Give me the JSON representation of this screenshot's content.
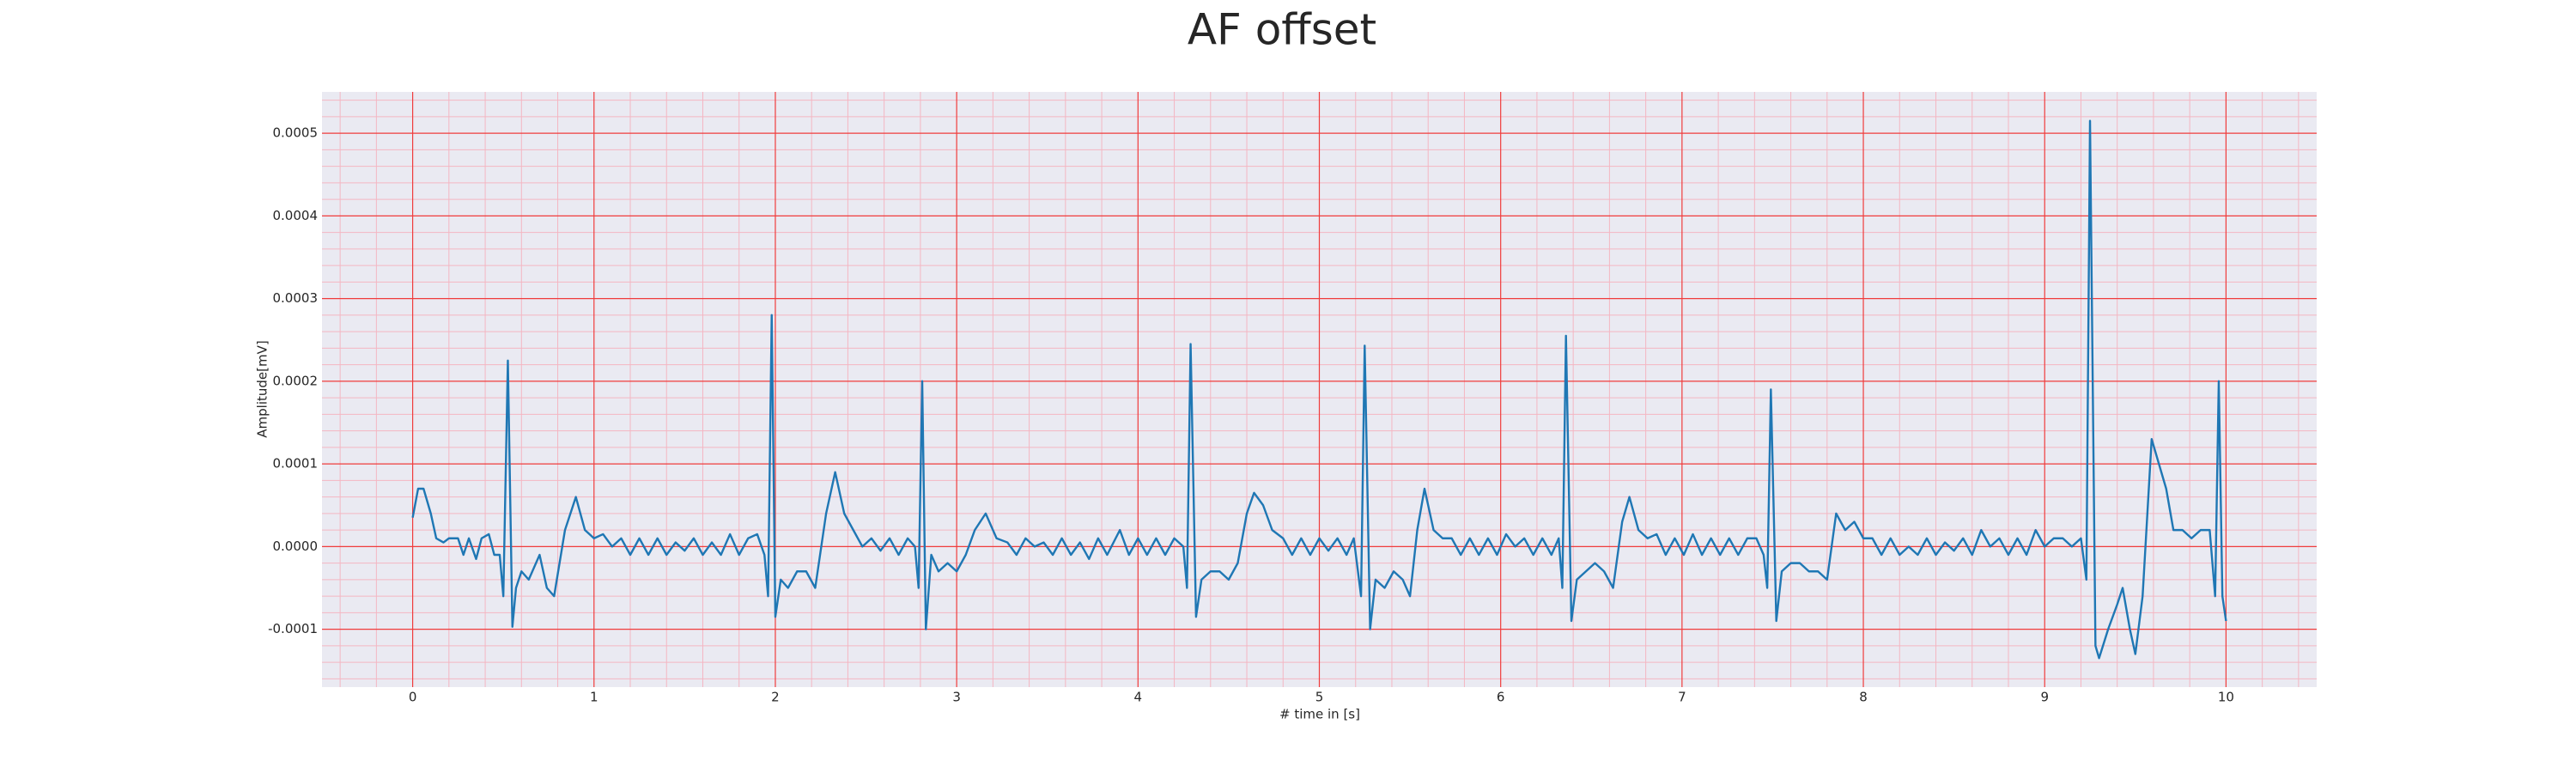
{
  "chart_data": {
    "type": "line",
    "title": "AF offset",
    "xlabel": "# time in [s]",
    "ylabel": "Amplitude[mV]",
    "xlim": [
      -0.5,
      10.5
    ],
    "xticks": [
      0,
      1,
      2,
      3,
      4,
      5,
      6,
      7,
      8,
      9,
      10
    ],
    "ylim": [
      -0.00017,
      0.00055
    ],
    "yticks": [
      -0.0001,
      {
        "value": 0,
        "label": "0.0000"
      },
      0.0001,
      0.0002,
      0.0003,
      0.0004,
      0.0005
    ],
    "grid": true,
    "minor_grid": true,
    "series": [
      {
        "color": "#1f77b4",
        "x": [
          0,
          0.03,
          0.06,
          0.1,
          0.13,
          0.17,
          0.2,
          0.25,
          0.28,
          0.31,
          0.35,
          0.38,
          0.42,
          0.45,
          0.48,
          0.5,
          0.525,
          0.55,
          0.57,
          0.6,
          0.64,
          0.7,
          0.74,
          0.78,
          0.84,
          0.9,
          0.95,
          1.0,
          1.05,
          1.1,
          1.15,
          1.2,
          1.25,
          1.3,
          1.35,
          1.4,
          1.45,
          1.5,
          1.55,
          1.6,
          1.65,
          1.7,
          1.75,
          1.8,
          1.85,
          1.9,
          1.94,
          1.96,
          1.98,
          2.0,
          2.03,
          2.07,
          2.12,
          2.17,
          2.22,
          2.28,
          2.33,
          2.38,
          2.43,
          2.48,
          2.53,
          2.58,
          2.63,
          2.68,
          2.73,
          2.77,
          2.79,
          2.81,
          2.83,
          2.86,
          2.9,
          2.95,
          3.0,
          3.05,
          3.1,
          3.16,
          3.22,
          3.28,
          3.33,
          3.38,
          3.43,
          3.48,
          3.53,
          3.58,
          3.63,
          3.68,
          3.73,
          3.78,
          3.83,
          3.9,
          3.95,
          4.0,
          4.05,
          4.1,
          4.15,
          4.2,
          4.25,
          4.27,
          4.29,
          4.32,
          4.35,
          4.4,
          4.45,
          4.5,
          4.55,
          4.6,
          4.64,
          4.69,
          4.74,
          4.8,
          4.85,
          4.9,
          4.95,
          5.0,
          5.05,
          5.1,
          5.15,
          5.19,
          5.23,
          5.25,
          5.28,
          5.31,
          5.36,
          5.41,
          5.46,
          5.5,
          5.54,
          5.58,
          5.63,
          5.68,
          5.73,
          5.78,
          5.83,
          5.88,
          5.93,
          5.98,
          6.03,
          6.08,
          6.13,
          6.18,
          6.23,
          6.28,
          6.32,
          6.34,
          6.36,
          6.39,
          6.42,
          6.47,
          6.52,
          6.57,
          6.62,
          6.67,
          6.71,
          6.76,
          6.81,
          6.86,
          6.91,
          6.96,
          7.01,
          7.06,
          7.11,
          7.16,
          7.21,
          7.26,
          7.31,
          7.36,
          7.41,
          7.45,
          7.47,
          7.49,
          7.52,
          7.55,
          7.6,
          7.65,
          7.7,
          7.75,
          7.8,
          7.85,
          7.9,
          7.95,
          8.0,
          8.05,
          8.1,
          8.15,
          8.2,
          8.25,
          8.3,
          8.35,
          8.4,
          8.45,
          8.5,
          8.55,
          8.6,
          8.65,
          8.7,
          8.75,
          8.8,
          8.85,
          8.9,
          8.95,
          9.0,
          9.05,
          9.1,
          9.15,
          9.2,
          9.23,
          9.25,
          9.28,
          9.3,
          9.35,
          9.4,
          9.43,
          9.47,
          9.5,
          9.54,
          9.59,
          9.63,
          9.67,
          9.71,
          9.76,
          9.81,
          9.86,
          9.91,
          9.94,
          9.96,
          9.98,
          10.0
        ],
        "values": [
          3.5e-05,
          7e-05,
          7e-05,
          4e-05,
          1e-05,
          5e-06,
          1e-05,
          1e-05,
          -1e-05,
          1e-05,
          -1.5e-05,
          1e-05,
          1.5e-05,
          -1e-05,
          -1e-05,
          -6e-05,
          0.000225,
          -9.7e-05,
          -5e-05,
          -3e-05,
          -4e-05,
          -1e-05,
          -5e-05,
          -6e-05,
          2e-05,
          6e-05,
          2e-05,
          1e-05,
          1.5e-05,
          0,
          1e-05,
          -1e-05,
          1e-05,
          -1e-05,
          1e-05,
          -1e-05,
          5e-06,
          -5e-06,
          1e-05,
          -1e-05,
          5e-06,
          -1e-05,
          1.5e-05,
          -1e-05,
          1e-05,
          1.5e-05,
          -1e-05,
          -6e-05,
          0.00028,
          -8.5e-05,
          -4e-05,
          -5e-05,
          -3e-05,
          -3e-05,
          -5e-05,
          4e-05,
          9e-05,
          4e-05,
          2e-05,
          0,
          1e-05,
          -5e-06,
          1e-05,
          -1e-05,
          1e-05,
          0,
          -5e-05,
          0.0002,
          -0.0001,
          -1e-05,
          -3e-05,
          -2e-05,
          -3e-05,
          -1e-05,
          2e-05,
          4e-05,
          1e-05,
          5e-06,
          -1e-05,
          1e-05,
          0,
          5e-06,
          -1e-05,
          1e-05,
          -1e-05,
          5e-06,
          -1.5e-05,
          1e-05,
          -1e-05,
          2e-05,
          -1e-05,
          1e-05,
          -1e-05,
          1e-05,
          -1e-05,
          1e-05,
          0,
          -5e-05,
          0.000245,
          -8.5e-05,
          -4e-05,
          -3e-05,
          -3e-05,
          -4e-05,
          -2e-05,
          4e-05,
          6.5e-05,
          5e-05,
          2e-05,
          1e-05,
          -1e-05,
          1e-05,
          -1e-05,
          1e-05,
          -5e-06,
          1e-05,
          -1e-05,
          1e-05,
          -6e-05,
          0.000243,
          -0.0001,
          -4e-05,
          -5e-05,
          -3e-05,
          -4e-05,
          -6e-05,
          2e-05,
          7e-05,
          2e-05,
          1e-05,
          1e-05,
          -1e-05,
          1e-05,
          -1e-05,
          1e-05,
          -1e-05,
          1.5e-05,
          0,
          1e-05,
          -1e-05,
          1e-05,
          -1e-05,
          1e-05,
          -5e-05,
          0.000255,
          -9e-05,
          -4e-05,
          -3e-05,
          -2e-05,
          -3e-05,
          -5e-05,
          3e-05,
          6e-05,
          2e-05,
          1e-05,
          1.5e-05,
          -1e-05,
          1e-05,
          -1e-05,
          1.5e-05,
          -1e-05,
          1e-05,
          -1e-05,
          1e-05,
          -1e-05,
          1e-05,
          1e-05,
          -1e-05,
          -5e-05,
          0.00019,
          -9e-05,
          -3e-05,
          -2e-05,
          -2e-05,
          -3e-05,
          -3e-05,
          -4e-05,
          4e-05,
          2e-05,
          3e-05,
          1e-05,
          1e-05,
          -1e-05,
          1e-05,
          -1e-05,
          0,
          -1e-05,
          1e-05,
          -1e-05,
          5e-06,
          -5e-06,
          1e-05,
          -1e-05,
          2e-05,
          0,
          1e-05,
          -1e-05,
          1e-05,
          -1e-05,
          2e-05,
          0,
          1e-05,
          1e-05,
          0,
          1e-05,
          -4e-05,
          0.000515,
          -0.00012,
          -0.000135,
          -0.0001,
          -7e-05,
          -5e-05,
          -0.0001,
          -0.00013,
          -6e-05,
          0.00013,
          0.0001,
          7e-05,
          2e-05,
          2e-05,
          1e-05,
          2e-05,
          2e-05,
          -6e-05,
          0.0002,
          -6e-05,
          -9e-05
        ]
      }
    ]
  }
}
